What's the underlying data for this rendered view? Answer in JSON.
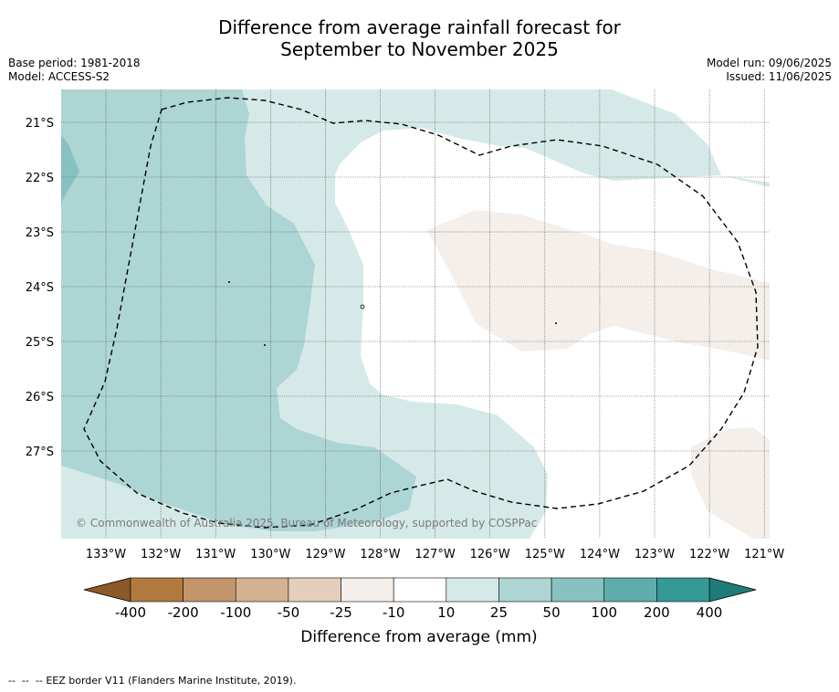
{
  "header": {
    "title_line1": "Difference from average rainfall forecast for",
    "title_line2": "September to November 2025",
    "base_period": "Base period: 1981-2018",
    "model": "Model: ACCESS-S2",
    "model_run": "Model run: 09/06/2025",
    "issued": "Issued: 11/06/2025"
  },
  "map": {
    "lat_labels": [
      "21°S",
      "22°S",
      "23°S",
      "24°S",
      "25°S",
      "26°S",
      "27°S"
    ],
    "lon_labels": [
      "133°W",
      "132°W",
      "131°W",
      "130°W",
      "129°W",
      "128°W",
      "127°W",
      "126°W",
      "125°W",
      "124°W",
      "123°W",
      "122°W",
      "121°W"
    ],
    "copyright": "© Commonwealth of Australia 2025, Bureau of Meteorology, supported by COSPPac"
  },
  "colorbar": {
    "labels": [
      "-400",
      "-200",
      "-100",
      "-50",
      "-25",
      "-10",
      "10",
      "25",
      "50",
      "100",
      "200",
      "400"
    ],
    "colors": [
      "#b07a3f",
      "#c3956a",
      "#d4b190",
      "#e4cfbd",
      "#f4efea",
      "#ffffff",
      "#d5eae8",
      "#acd5d4",
      "#87c2c1",
      "#5eadac",
      "#349997"
    ],
    "extend_low_color": "#8c5a28",
    "extend_high_color": "#1f7b79",
    "label": "Difference from average (mm)"
  },
  "legend": {
    "eez_text": "EEZ border V11 (Flanders Marine Institute, 2019)."
  }
}
